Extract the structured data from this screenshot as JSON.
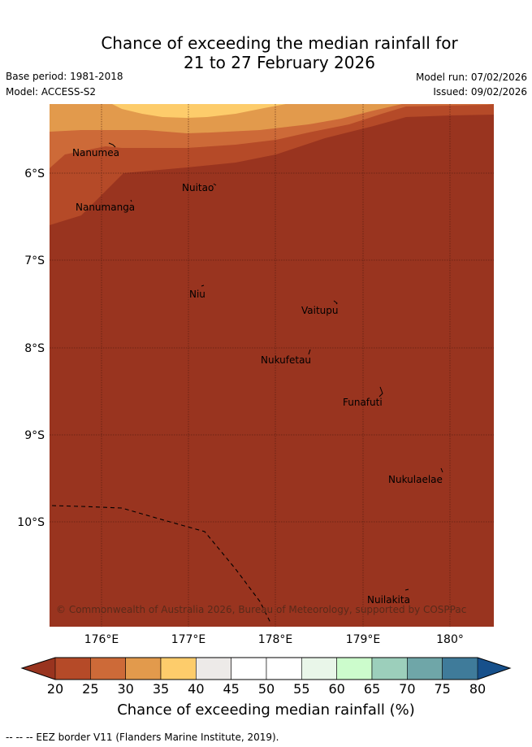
{
  "title": {
    "line1": "Chance of exceeding the median rainfall for",
    "line2": "21 to 27 February 2026"
  },
  "meta": {
    "base_period": "Base period: 1981-2018",
    "model": "Model: ACCESS-S2",
    "model_run": "Model run: 07/02/2026",
    "issued": "Issued: 09/02/2026"
  },
  "map": {
    "lon_ticks": [
      "176°E",
      "177°E",
      "178°E",
      "179°E",
      "180°"
    ],
    "lat_ticks": [
      "6°S",
      "7°S",
      "8°S",
      "9°S",
      "10°S"
    ],
    "places": [
      "Nanumea",
      "Nuitao",
      "Nanumanga",
      "Niu",
      "Vaitupu",
      "Nukufetau",
      "Funafuti",
      "Nukulaelae",
      "Nuilakita"
    ],
    "copyright": "© Commonwealth of Australia 2026, Bureau of Meteorology, supported by COSPPac"
  },
  "colorbar": {
    "ticks": [
      "20",
      "25",
      "30",
      "35",
      "40",
      "45",
      "50",
      "55",
      "60",
      "65",
      "70",
      "75",
      "80"
    ],
    "label": "Chance of exceeding median rainfall (%)",
    "colors": [
      "#b54a28",
      "#cd6a38",
      "#e29a4c",
      "#fdcc6b",
      "#edeae8",
      "#ffffff",
      "#ffffff",
      "#e9f6e9",
      "#ccfccc",
      "#9ccfbb",
      "#6fa6a8",
      "#3f7b9a"
    ],
    "under_color": "#99341f",
    "over_color": "#17508b"
  },
  "footnote": "-- -- -- EEZ border V11 (Flanders Marine Institute, 2019)."
}
